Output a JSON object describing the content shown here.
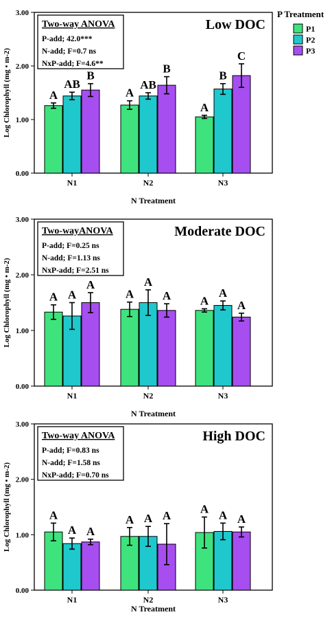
{
  "legend": {
    "title": "P Treatment",
    "entries": [
      {
        "name": "P1",
        "color": "#3ee37e"
      },
      {
        "name": "P2",
        "color": "#1fc8cc"
      },
      {
        "name": "P3",
        "color": "#a64ef0"
      }
    ]
  },
  "colors": {
    "P1": "#3ee37e",
    "P2": "#1fc8cc",
    "P3": "#a64ef0"
  },
  "chart_data": [
    {
      "type": "bar",
      "title": "Low DOC",
      "xlabel": "N Treatment",
      "ylabel": "Log Chlorophyll (mg • m-2)",
      "ylim": [
        0,
        3
      ],
      "yticks": [
        "0.00",
        "1.00",
        "2.00",
        "3.00"
      ],
      "categories": [
        "N1",
        "N2",
        "N3"
      ],
      "series": [
        {
          "name": "P1",
          "values": [
            1.26,
            1.27,
            1.05
          ],
          "errors": [
            0.05,
            0.08,
            0.03
          ],
          "labels": [
            "A",
            "A",
            "A"
          ]
        },
        {
          "name": "P2",
          "values": [
            1.44,
            1.44,
            1.57
          ],
          "errors": [
            0.07,
            0.06,
            0.1
          ],
          "labels": [
            "AB",
            "AB",
            "B"
          ]
        },
        {
          "name": "P3",
          "values": [
            1.55,
            1.64,
            1.82
          ],
          "errors": [
            0.12,
            0.16,
            0.22
          ],
          "labels": [
            "B",
            "B",
            "C"
          ]
        }
      ],
      "anova": {
        "title": "Two-way ANOVA",
        "lines": [
          "P-add; 42.0***",
          "N-add; F=0.7 ns",
          "NxP-add; F=4.6**"
        ]
      }
    },
    {
      "type": "bar",
      "title": "Moderate DOC",
      "xlabel": "N Treatment",
      "ylabel": "Log Chlorophyll (mg • m-2)",
      "ylim": [
        0,
        3
      ],
      "yticks": [
        "0.00",
        "1.00",
        "2.00",
        "3.00"
      ],
      "categories": [
        "N1",
        "N2",
        "N3"
      ],
      "series": [
        {
          "name": "P1",
          "values": [
            1.33,
            1.38,
            1.36
          ],
          "errors": [
            0.13,
            0.13,
            0.03
          ],
          "labels": [
            "A",
            "A",
            "A"
          ]
        },
        {
          "name": "P2",
          "values": [
            1.26,
            1.5,
            1.45
          ],
          "errors": [
            0.24,
            0.23,
            0.08
          ],
          "labels": [
            "A",
            "A",
            "A"
          ]
        },
        {
          "name": "P3",
          "values": [
            1.5,
            1.36,
            1.24
          ],
          "errors": [
            0.18,
            0.12,
            0.07
          ],
          "labels": [
            "A",
            "A",
            "A"
          ]
        }
      ],
      "anova": {
        "title": "Two-wayANOVA",
        "lines": [
          "P-add; F=0.25 ns",
          "N-add; F=1.13 ns",
          "NxP-add; F=2.51 ns"
        ]
      }
    },
    {
      "type": "bar",
      "title": "High DOC",
      "xlabel": "N Treatment",
      "ylabel": "Log Chlorophyll (mg • m-2)",
      "ylim": [
        0,
        3
      ],
      "yticks": [
        "0.00",
        "1.00",
        "2.00",
        "3.00"
      ],
      "categories": [
        "N1",
        "N2",
        "N3"
      ],
      "series": [
        {
          "name": "P1",
          "values": [
            1.05,
            0.97,
            1.04
          ],
          "errors": [
            0.16,
            0.16,
            0.28
          ],
          "labels": [
            "A",
            "A",
            "A"
          ]
        },
        {
          "name": "P2",
          "values": [
            0.84,
            0.97,
            1.06
          ],
          "errors": [
            0.1,
            0.18,
            0.15
          ],
          "labels": [
            "A",
            "A",
            "A"
          ]
        },
        {
          "name": "P3",
          "values": [
            0.87,
            0.83,
            1.05
          ],
          "errors": [
            0.05,
            0.37,
            0.09
          ],
          "labels": [
            "A",
            "A",
            "A"
          ]
        }
      ],
      "anova": {
        "title": "Two-way ANOVA",
        "lines": [
          "P-add; F=0.83 ns",
          "N-add; F=1.58 ns",
          "NxP-add; F=0.70 ns"
        ]
      }
    }
  ]
}
